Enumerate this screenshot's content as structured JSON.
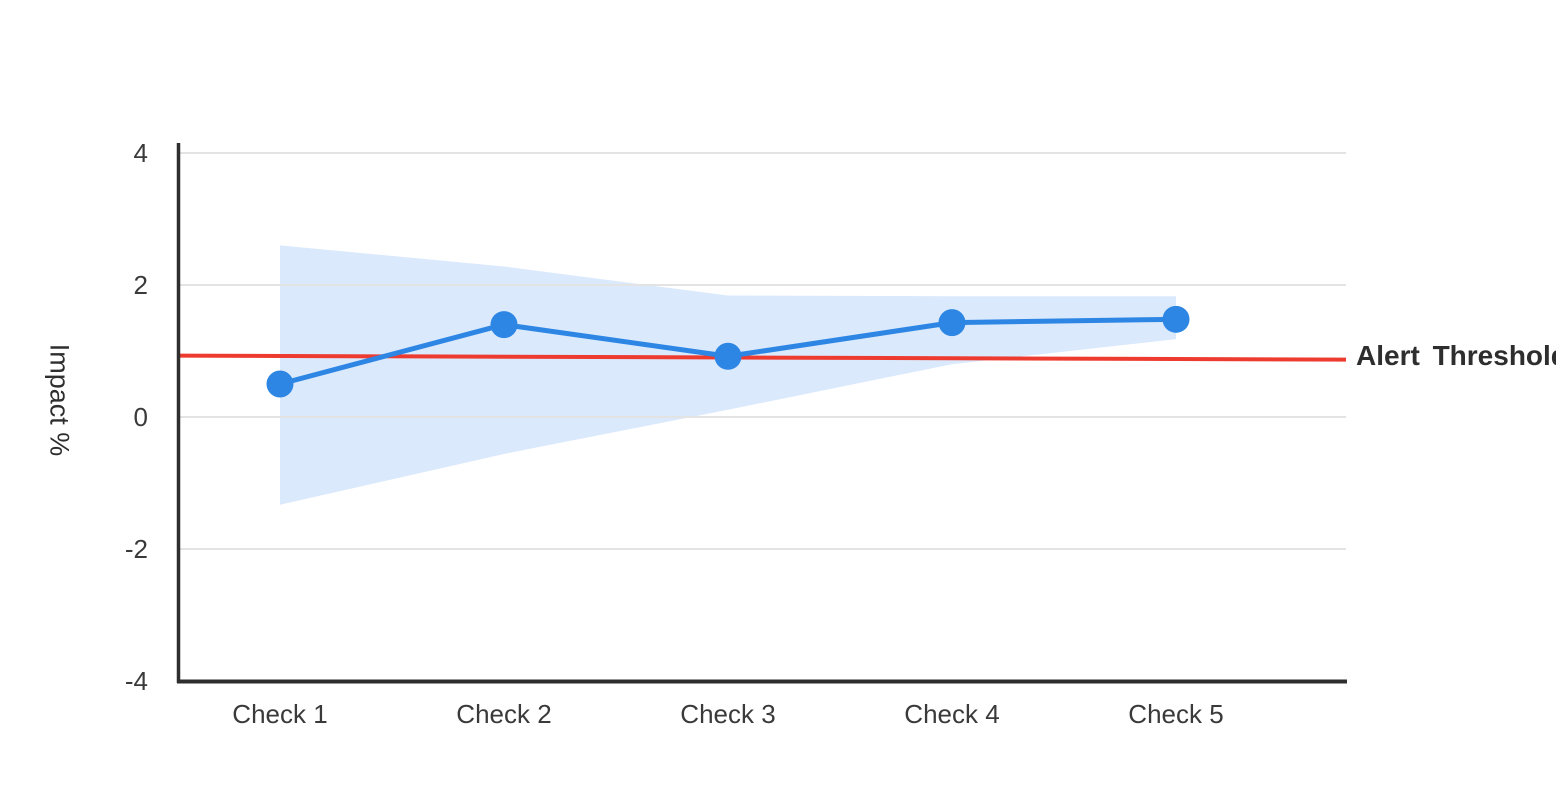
{
  "chart_data": {
    "type": "line",
    "title": "",
    "xlabel": "",
    "ylabel": "Impact %",
    "categories": [
      "Check 1",
      "Check 2",
      "Check 3",
      "Check 4",
      "Check 5"
    ],
    "series": [
      {
        "name": "Impact %",
        "values": [
          0.5,
          1.4,
          0.92,
          1.43,
          1.48
        ]
      }
    ],
    "band": {
      "name": "confidence-interval",
      "upper": [
        2.6,
        2.28,
        1.84,
        1.83,
        1.83
      ],
      "lower": [
        -1.33,
        -0.56,
        0.11,
        0.8,
        1.18
      ]
    },
    "threshold": {
      "label": "Alert Threshold",
      "value": 0.9,
      "line_start_value": 0.93,
      "line_end_value": 0.87
    },
    "yticks": [
      4,
      2,
      0,
      -2,
      -4
    ],
    "ylim": [
      -4.1,
      4.15
    ],
    "grid": true,
    "legend_position": "none",
    "colors": {
      "line": "#2d86e4",
      "marker": "#2d86e4",
      "band_fill": "#dbe9fc",
      "threshold_line": "#ee3b30",
      "axis": "#2e2e2e",
      "gridline": "#e3e3e3",
      "tick_text": "#3a3a3a",
      "threshold_text": "#2e2e2e"
    }
  }
}
